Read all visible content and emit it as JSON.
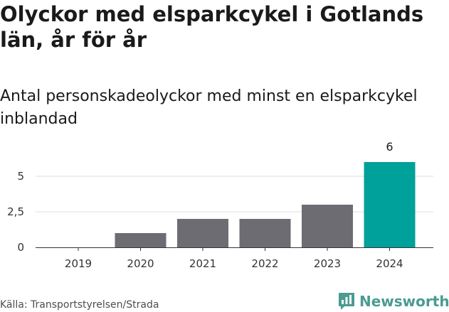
{
  "header": {
    "title": "Olyckor med elsparkcykel i Gotlands län, år för år",
    "subtitle": "Antal personskadeolyckor med minst en elsparkcykel inblandad"
  },
  "footer": {
    "source": "Källa: Transportstyrelsen/Strada",
    "brand": "Newsworthy",
    "brand_icon": "bar-chart-speech-bubble-icon"
  },
  "colors": {
    "bar_default": "#6d6c73",
    "bar_highlight": "#00a19a",
    "grid": "#dddddd",
    "axis": "#333333",
    "brand": "#4a9b90"
  },
  "chart_data": {
    "type": "bar",
    "title": "Olyckor med elsparkcykel i Gotlands län, år för år",
    "subtitle": "Antal personskadeolyckor med minst en elsparkcykel inblandad",
    "categories": [
      "2019",
      "2020",
      "2021",
      "2022",
      "2023",
      "2024"
    ],
    "values": [
      0,
      1,
      2,
      2,
      3,
      6
    ],
    "highlight_index": 5,
    "data_labels": [
      "",
      "",
      "",
      "",
      "",
      "6"
    ],
    "yticks": [
      0,
      2.5,
      5
    ],
    "ytick_labels": [
      "0",
      "2,5",
      "5"
    ],
    "ylim": [
      0,
      6
    ],
    "xlabel": "",
    "ylabel": "",
    "grid": true,
    "legend": "none"
  }
}
